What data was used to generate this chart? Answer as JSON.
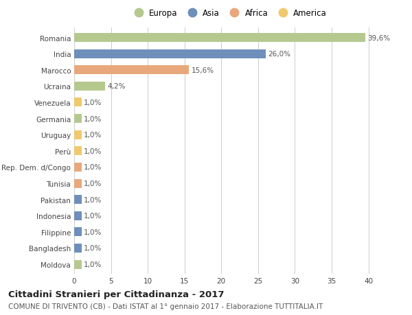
{
  "countries": [
    "Romania",
    "India",
    "Marocco",
    "Ucraina",
    "Venezuela",
    "Germania",
    "Uruguay",
    "Perù",
    "Rep. Dem. d/Congo",
    "Tunisia",
    "Pakistan",
    "Indonesia",
    "Filippine",
    "Bangladesh",
    "Moldova"
  ],
  "values": [
    39.6,
    26.0,
    15.6,
    4.2,
    1.0,
    1.0,
    1.0,
    1.0,
    1.0,
    1.0,
    1.0,
    1.0,
    1.0,
    1.0,
    1.0
  ],
  "labels": [
    "39,6%",
    "26,0%",
    "15,6%",
    "4,2%",
    "1,0%",
    "1,0%",
    "1,0%",
    "1,0%",
    "1,0%",
    "1,0%",
    "1,0%",
    "1,0%",
    "1,0%",
    "1,0%",
    "1,0%"
  ],
  "continents": [
    "Europa",
    "Asia",
    "Africa",
    "Europa",
    "America",
    "Europa",
    "America",
    "America",
    "Africa",
    "Africa",
    "Asia",
    "Asia",
    "Asia",
    "Asia",
    "Europa"
  ],
  "continent_colors": {
    "Europa": "#b5c98e",
    "Asia": "#6e8fba",
    "Africa": "#e8a87c",
    "America": "#f0c96e"
  },
  "legend_order": [
    "Europa",
    "Asia",
    "Africa",
    "America"
  ],
  "title": "Cittadini Stranieri per Cittadinanza - 2017",
  "subtitle": "COMUNE DI TRIVENTO (CB) - Dati ISTAT al 1° gennaio 2017 - Elaborazione TUTTITALIA.IT",
  "xlim": [
    0,
    42
  ],
  "xticks": [
    0,
    5,
    10,
    15,
    20,
    25,
    30,
    35,
    40
  ],
  "background_color": "#ffffff",
  "grid_color": "#cccccc",
  "bar_height": 0.55,
  "title_fontsize": 9.5,
  "subtitle_fontsize": 7.5,
  "label_fontsize": 7.5,
  "tick_fontsize": 7.5,
  "legend_fontsize": 8.5
}
